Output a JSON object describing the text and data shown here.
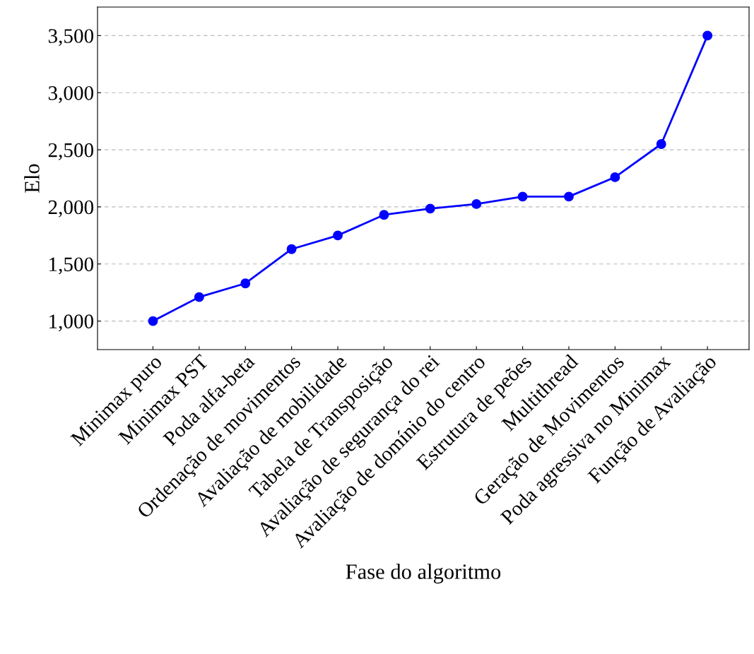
{
  "chart_data": {
    "type": "line",
    "xlabel": "Fase do algoritmo",
    "ylabel": "Elo",
    "categories": [
      "Minimax puro",
      "Minimax PST",
      "Poda alfa-beta",
      "Ordenação de movimentos",
      "Avaliação de mobilidade",
      "Tabela de Transposição",
      "Avaliação de segurança do rei",
      "Avaliação de domínio do centro",
      "Estrutura de peões",
      "Multithread",
      "Geração de Movimentos",
      "Poda agressiva no Minimax",
      "Função de Avaliação"
    ],
    "series": [
      {
        "color": "#0000ff",
        "values": [
          1000,
          1210,
          1330,
          1630,
          1750,
          1930,
          1985,
          2025,
          2090,
          2090,
          2260,
          2550,
          3500
        ]
      }
    ],
    "ylim": [
      750,
      3750
    ],
    "yticks": [
      {
        "value": 1000,
        "label": "1,000"
      },
      {
        "value": 1500,
        "label": "1,500"
      },
      {
        "value": 2000,
        "label": "2,000"
      },
      {
        "value": 2500,
        "label": "2,500"
      },
      {
        "value": 3000,
        "label": "3,000"
      },
      {
        "value": 3500,
        "label": "3,500"
      }
    ],
    "grid": "y",
    "marker": "circle",
    "line_style": "solid"
  }
}
